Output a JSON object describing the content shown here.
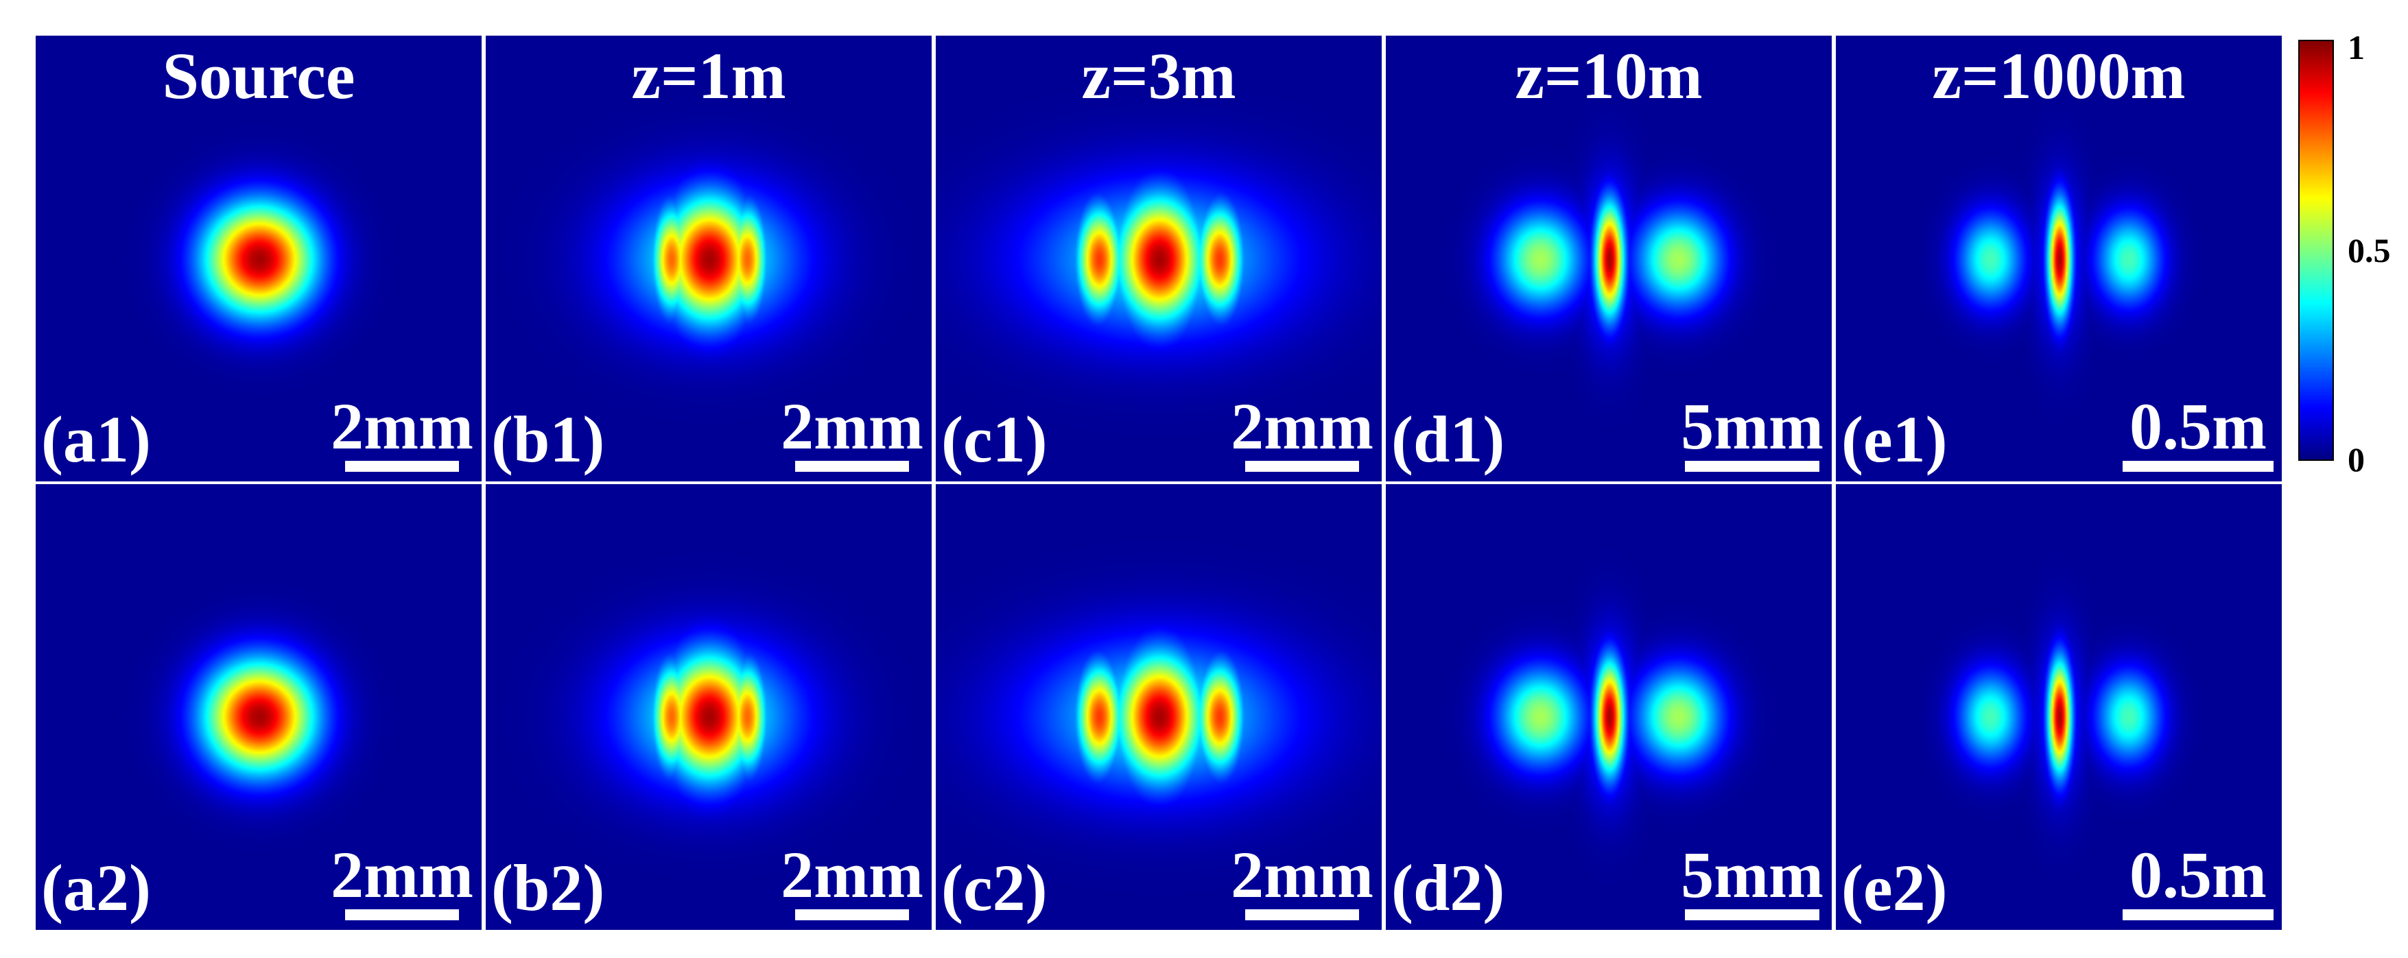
{
  "columns": [
    {
      "title": "Source",
      "scale_label": "2mm",
      "field": {
        "pattern": "round-spot",
        "side_lobes": 0
      }
    },
    {
      "title": "z=1m",
      "scale_label": "2mm",
      "field": {
        "pattern": "center-with-fringes",
        "side_lobes": 2
      }
    },
    {
      "title": "z=3m",
      "scale_label": "2mm",
      "field": {
        "pattern": "center-with-side-lobes",
        "side_lobes": 2
      }
    },
    {
      "title": "z=10m",
      "scale_label": "5mm",
      "field": {
        "pattern": "narrow-center-with-side-lobes",
        "side_lobes": 2
      }
    },
    {
      "title": "z=1000m",
      "scale_label": "0.5m",
      "field": {
        "pattern": "narrow-center-with-side-lobes",
        "side_lobes": 2
      }
    }
  ],
  "rows": [
    {
      "labels": [
        "(a1)",
        "(b1)",
        "(c1)",
        "(d1)",
        "(e1)"
      ]
    },
    {
      "labels": [
        "(a2)",
        "(b2)",
        "(c2)",
        "(d2)",
        "(e2)"
      ]
    }
  ],
  "colorbar": {
    "colormap": "jet",
    "ticks": [
      "1",
      "0.5",
      "0"
    ],
    "range": [
      0,
      1
    ]
  },
  "colors": {
    "background_low": "#00008f",
    "peak": "#800000",
    "text": "#ffffff"
  }
}
